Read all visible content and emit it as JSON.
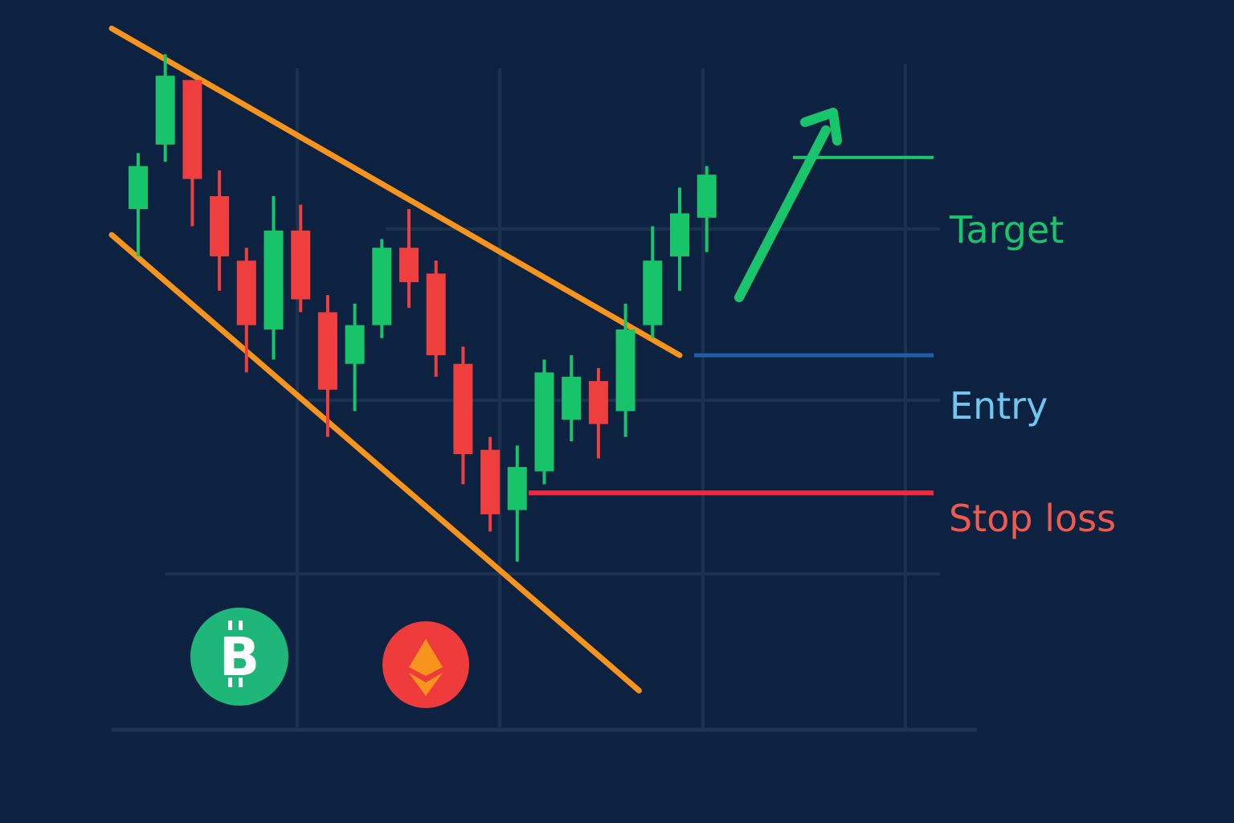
{
  "colors": {
    "background": "#0c2240",
    "grid": "#1d3452",
    "bullish": "#18c46a",
    "bearish": "#ee3e3e",
    "channel": "#f7941d",
    "target": "#19c56a",
    "entry_line": "#1e5ea6",
    "entry_text": "#6fc6f0",
    "stop": "#f02a3c",
    "stop_text": "#f05a4e",
    "btc_coin": "#1fb67a",
    "eth_coin": "#ef3b3b",
    "eth_symbol": "#f7941d"
  },
  "icons": [
    "bitcoin-coin-icon",
    "ethereum-coin-icon",
    "arrow-up-right-icon"
  ],
  "levels": {
    "target": {
      "label": "Target",
      "price": 73.0
    },
    "entry": {
      "label": "Entry",
      "price": 50.0
    },
    "stop_loss": {
      "label": "Stop loss",
      "price": 34.0
    }
  },
  "chart_data": {
    "type": "candlestick",
    "title": "",
    "xlabel": "",
    "ylabel": "",
    "ylim": [
      0,
      100
    ],
    "grid": true,
    "candles": [
      {
        "open": 67.0,
        "high": 73.5,
        "low": 61.5,
        "close": 72.0
      },
      {
        "open": 74.5,
        "high": 85.0,
        "low": 72.5,
        "close": 82.5
      },
      {
        "open": 82.0,
        "high": 82.0,
        "low": 65.0,
        "close": 70.5
      },
      {
        "open": 68.5,
        "high": 71.5,
        "low": 57.5,
        "close": 61.5
      },
      {
        "open": 61.0,
        "high": 62.5,
        "low": 48.0,
        "close": 53.5
      },
      {
        "open": 53.0,
        "high": 68.5,
        "low": 49.5,
        "close": 64.5
      },
      {
        "open": 64.5,
        "high": 67.5,
        "low": 55.0,
        "close": 56.5
      },
      {
        "open": 55.0,
        "high": 57.0,
        "low": 40.5,
        "close": 46.0
      },
      {
        "open": 49.0,
        "high": 56.0,
        "low": 43.5,
        "close": 53.5
      },
      {
        "open": 53.5,
        "high": 63.5,
        "low": 52.0,
        "close": 62.5
      },
      {
        "open": 62.5,
        "high": 67.0,
        "low": 55.5,
        "close": 58.5
      },
      {
        "open": 59.5,
        "high": 61.0,
        "low": 47.5,
        "close": 50.0
      },
      {
        "open": 49.0,
        "high": 51.0,
        "low": 35.0,
        "close": 38.5
      },
      {
        "open": 39.0,
        "high": 40.5,
        "low": 29.5,
        "close": 31.5
      },
      {
        "open": 32.0,
        "high": 39.5,
        "low": 26.0,
        "close": 37.0
      },
      {
        "open": 36.5,
        "high": 49.5,
        "low": 35.0,
        "close": 48.0
      },
      {
        "open": 42.5,
        "high": 50.0,
        "low": 40.0,
        "close": 47.5
      },
      {
        "open": 47.0,
        "high": 48.5,
        "low": 38.0,
        "close": 42.0
      },
      {
        "open": 43.5,
        "high": 56.0,
        "low": 40.5,
        "close": 53.0
      },
      {
        "open": 53.5,
        "high": 65.0,
        "low": 52.0,
        "close": 61.0
      },
      {
        "open": 61.5,
        "high": 69.5,
        "low": 57.5,
        "close": 66.5
      },
      {
        "open": 66.0,
        "high": 72.0,
        "low": 62.0,
        "close": 71.0
      }
    ],
    "channel": {
      "upper": {
        "start": {
          "x": 0,
          "y": 88
        },
        "end": {
          "x": 20,
          "y": 50
        }
      },
      "lower": {
        "start": {
          "x": 0,
          "y": 64
        },
        "end": {
          "x": 18.5,
          "y": 11
        }
      }
    }
  }
}
